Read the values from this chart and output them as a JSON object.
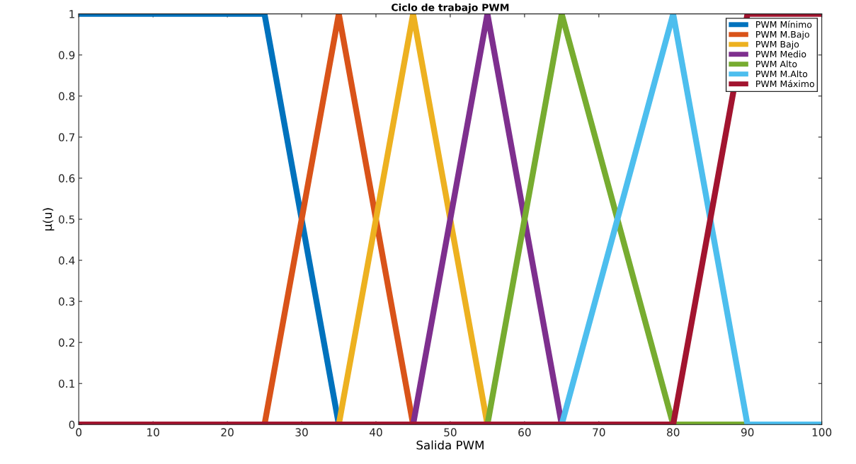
{
  "chart_data": {
    "type": "line",
    "title": "Ciclo de trabajo PWM",
    "xlabel": "Salida PWM",
    "ylabel": "μ(u)",
    "xlim": [
      0,
      100
    ],
    "ylim": [
      0,
      1
    ],
    "xticks": [
      0,
      10,
      20,
      30,
      40,
      50,
      60,
      70,
      80,
      90,
      100
    ],
    "yticks": [
      0,
      0.1,
      0.2,
      0.3,
      0.4,
      0.5,
      0.6,
      0.7,
      0.8,
      0.9,
      1
    ],
    "grid": false,
    "legend": "top right",
    "marker": "none",
    "line_style": "solid",
    "series": [
      {
        "name": "PWM Mínimo",
        "color": "#0072bd",
        "x": [
          0,
          25,
          35,
          100
        ],
        "values": [
          1,
          1,
          0,
          0
        ]
      },
      {
        "name": "PWM M.Bajo",
        "color": "#d95319",
        "x": [
          25,
          35,
          45
        ],
        "values": [
          0,
          1,
          0
        ]
      },
      {
        "name": "PWM Bajo",
        "color": "#edb120",
        "x": [
          35,
          45,
          55
        ],
        "values": [
          0,
          1,
          0
        ]
      },
      {
        "name": "PWM Medio",
        "color": "#7e2f8e",
        "x": [
          45,
          55,
          65
        ],
        "values": [
          0,
          1,
          0
        ]
      },
      {
        "name": "PWM Alto",
        "color": "#77ac30",
        "x": [
          55,
          65,
          80,
          90
        ],
        "values": [
          0,
          1,
          0,
          0
        ]
      },
      {
        "name": "PWM M.Alto",
        "color": "#4dbeee",
        "x": [
          65,
          80,
          90,
          100
        ],
        "values": [
          0,
          1,
          0,
          0
        ]
      },
      {
        "name": "PWM Máximo",
        "color": "#a2142f",
        "x": [
          0,
          80,
          90,
          100
        ],
        "values": [
          0,
          0,
          1,
          1
        ]
      }
    ]
  }
}
